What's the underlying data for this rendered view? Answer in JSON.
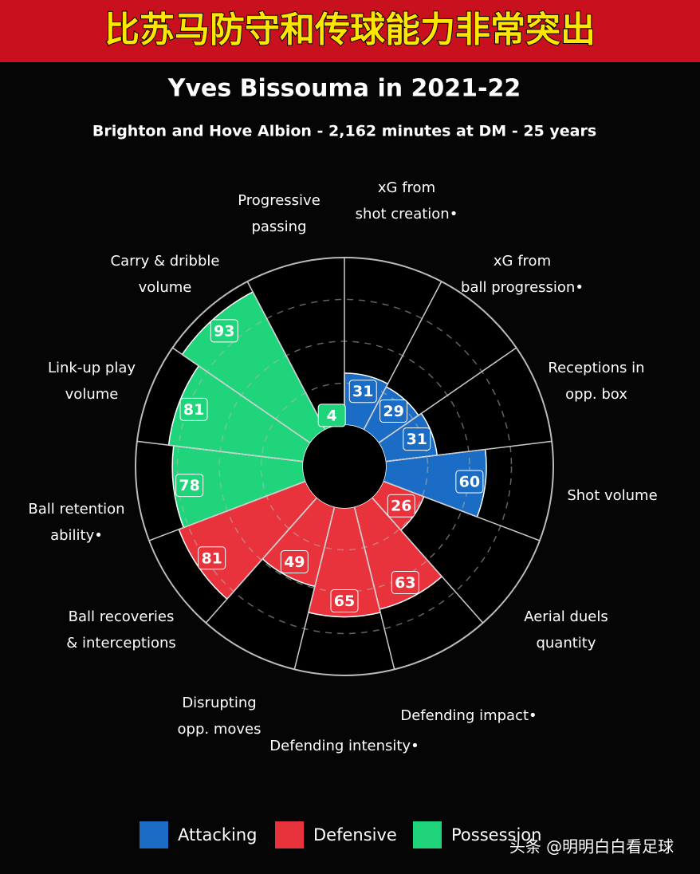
{
  "banner": "比苏马防守和传球能力非常突出",
  "watermark": "头条 @明明白白看足球",
  "chart_data": {
    "type": "pizza",
    "title": "Yves Bissouma in 2021-22",
    "subtitle": "Brighton and Hove Albion - 2,162 minutes at DM - 25 years",
    "categories": [
      [
        "xG from",
        "shot creation•"
      ],
      [
        "xG from",
        "ball progression•"
      ],
      [
        "Receptions in",
        "opp. box"
      ],
      [
        "Shot volume"
      ],
      [
        "Aerial duels",
        "quantity"
      ],
      [
        "Defending impact•"
      ],
      [
        "Defending intensity•"
      ],
      [
        "Disrupting",
        "opp. moves"
      ],
      [
        "Ball recoveries",
        "& interceptions"
      ],
      [
        "Ball retention",
        "ability•"
      ],
      [
        "Link-up play",
        "volume"
      ],
      [
        "Carry & dribble",
        "volume"
      ],
      [
        "Progressive",
        "passing"
      ]
    ],
    "series": [
      {
        "name": "Attacking",
        "color": "#1a6cc4",
        "values": [
          31,
          29,
          31,
          60,
          null,
          null,
          null,
          null,
          null,
          null,
          null,
          null,
          null
        ]
      },
      {
        "name": "Defensive",
        "color": "#e8323c",
        "values": [
          null,
          null,
          null,
          null,
          26,
          63,
          65,
          49,
          81,
          null,
          null,
          null,
          null
        ]
      },
      {
        "name": "Possession",
        "color": "#20d47c",
        "values": [
          null,
          null,
          null,
          null,
          null,
          null,
          null,
          null,
          null,
          78,
          81,
          93,
          4
        ]
      }
    ],
    "ylim": [
      0,
      100
    ],
    "yticks": [
      25,
      50,
      75
    ]
  }
}
